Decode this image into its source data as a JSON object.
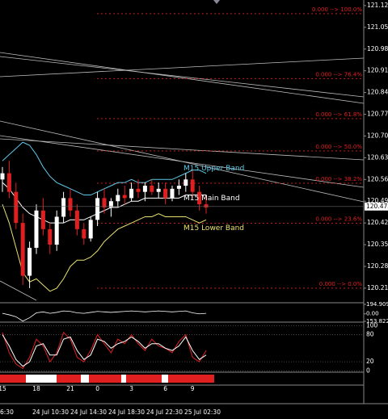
{
  "chart_data": {
    "type": "candlestick",
    "ylim": [
      120.163,
      121.138
    ],
    "yticks": [
      {
        "value": 121.12,
        "label": "121.120"
      },
      {
        "value": 121.05,
        "label": "121.050"
      },
      {
        "value": 120.98,
        "label": "120.980"
      },
      {
        "value": 120.91,
        "label": "120.910"
      },
      {
        "value": 120.84,
        "label": "120.840"
      },
      {
        "value": 120.77,
        "label": "120.770"
      },
      {
        "value": 120.7,
        "label": "120.700"
      },
      {
        "value": 120.63,
        "label": "120.630"
      },
      {
        "value": 120.56,
        "label": "120.560"
      },
      {
        "value": 120.49,
        "label": "120.490"
      },
      {
        "value": 120.42,
        "label": "120.420"
      },
      {
        "value": 120.35,
        "label": "120.350"
      },
      {
        "value": 120.28,
        "label": "120.280"
      },
      {
        "value": 120.21,
        "label": "120.210"
      }
    ],
    "last_price": {
      "value": 120.473,
      "label": "120.473"
    },
    "categories": [
      "15",
      null,
      null,
      null,
      null,
      "18",
      null,
      null,
      null,
      null,
      "21",
      null,
      null,
      null,
      "0",
      null,
      null,
      null,
      null,
      "3",
      null,
      null,
      null,
      null,
      "6",
      null,
      null,
      null,
      "9",
      null,
      null
    ],
    "date_labels": [
      "6:30",
      "24 Jul 10:30",
      "24 Jul 14:30",
      "24 Jul 18:30",
      "24 Jul 22:30",
      "25 Jul 02:30"
    ],
    "open": [
      120.56,
      120.58,
      120.52,
      120.42,
      120.25,
      120.34,
      120.46,
      120.4,
      120.35,
      120.44,
      120.5,
      120.46,
      120.4,
      120.37,
      120.43,
      120.5,
      120.47,
      120.49,
      120.51,
      120.5,
      120.53,
      120.52,
      120.54,
      120.52,
      120.53,
      120.5,
      120.53,
      120.54,
      120.56,
      120.52,
      120.48
    ],
    "high": [
      120.6,
      120.62,
      120.55,
      120.45,
      120.36,
      120.48,
      120.5,
      120.42,
      120.46,
      120.52,
      120.53,
      120.48,
      120.42,
      120.44,
      120.52,
      120.53,
      120.5,
      120.53,
      120.54,
      120.55,
      120.56,
      120.55,
      120.56,
      120.55,
      120.55,
      120.54,
      120.56,
      120.58,
      120.59,
      120.54,
      120.51
    ],
    "low": [
      120.52,
      120.5,
      120.4,
      120.22,
      120.21,
      120.32,
      120.38,
      120.32,
      120.33,
      120.42,
      120.44,
      120.38,
      120.35,
      120.36,
      120.41,
      120.45,
      120.44,
      120.47,
      120.48,
      120.49,
      120.5,
      120.49,
      120.51,
      120.5,
      120.48,
      120.49,
      120.51,
      120.52,
      120.5,
      120.46,
      120.45
    ],
    "close": [
      120.58,
      120.52,
      120.42,
      120.25,
      120.34,
      120.46,
      120.4,
      120.35,
      120.44,
      120.5,
      120.46,
      120.4,
      120.37,
      120.43,
      120.5,
      120.47,
      120.49,
      120.51,
      120.5,
      120.53,
      120.52,
      120.54,
      120.52,
      120.53,
      120.5,
      120.53,
      120.54,
      120.56,
      120.52,
      120.48,
      120.47
    ],
    "up_color": "#ffffff",
    "down_color": "#e02020",
    "bands": [
      {
        "name": "M15 Upper Band",
        "color": "#5fc8e8",
        "values": [
          120.62,
          120.64,
          120.66,
          120.68,
          120.67,
          120.64,
          120.6,
          120.57,
          120.55,
          120.54,
          120.53,
          120.52,
          120.51,
          120.51,
          120.52,
          120.53,
          120.54,
          120.55,
          120.55,
          120.56,
          120.55,
          120.55,
          120.56,
          120.56,
          120.56,
          120.56,
          120.57,
          120.58,
          120.59,
          120.59,
          120.58
        ]
      },
      {
        "name": "M15 Main Band",
        "color": "#ffffff",
        "values": [
          120.55,
          120.53,
          120.5,
          120.47,
          120.45,
          120.44,
          120.43,
          120.42,
          120.42,
          120.42,
          120.43,
          120.43,
          120.43,
          120.44,
          120.45,
          120.46,
          120.47,
          120.47,
          120.48,
          120.49,
          120.49,
          120.5,
          120.5,
          120.5,
          120.5,
          120.5,
          120.5,
          120.51,
          120.51,
          120.51,
          120.51
        ]
      },
      {
        "name": "M15 Lower Band",
        "color": "#e8e070",
        "values": [
          120.48,
          120.42,
          120.34,
          120.26,
          120.23,
          120.24,
          120.22,
          120.2,
          120.21,
          120.24,
          120.28,
          120.3,
          120.3,
          120.31,
          120.33,
          120.36,
          120.38,
          120.4,
          120.41,
          120.42,
          120.43,
          120.44,
          120.44,
          120.45,
          120.44,
          120.44,
          120.44,
          120.44,
          120.43,
          120.42,
          120.43
        ]
      }
    ],
    "fib_levels": [
      {
        "label": "0.000 --> 100.0%",
        "value": 121.094
      },
      {
        "label": "0.000 --> 76.4%",
        "value": 120.885
      },
      {
        "label": "0.000 --> 61.8%",
        "value": 120.756
      },
      {
        "label": "0.000 --> 50.0%",
        "value": 120.652
      },
      {
        "label": "0.000 --> 38.2%",
        "value": 120.548
      },
      {
        "label": "0.000 --> 23.6%",
        "value": 120.419
      },
      {
        "label": "0.000 --> 0.0%",
        "value": 120.21
      }
    ],
    "osc": {
      "ylim": [
        -153.822,
        194.9097
      ],
      "yticks": [
        {
          "value": 194.9097,
          "label": "194.9097"
        },
        {
          "value": 0,
          "label": "0.00"
        },
        {
          "value": -153.822,
          "label": "153.822"
        }
      ],
      "color": "#ffffff",
      "values": [
        10,
        -20,
        -60,
        -150,
        -80,
        20,
        40,
        10,
        30,
        60,
        50,
        20,
        10,
        30,
        50,
        40,
        30,
        40,
        50,
        60,
        50,
        40,
        50,
        60,
        50,
        40,
        50,
        60,
        20,
        0,
        10
      ]
    },
    "stoch": {
      "ylim": [
        -3,
        106
      ],
      "yticks": [
        100,
        80,
        20,
        0
      ],
      "series": [
        {
          "color": "#e02020",
          "values": [
            85,
            40,
            15,
            5,
            30,
            70,
            55,
            20,
            40,
            85,
            70,
            30,
            20,
            45,
            80,
            60,
            40,
            70,
            60,
            80,
            60,
            45,
            70,
            55,
            50,
            40,
            65,
            80,
            30,
            20,
            45
          ]
        },
        {
          "color": "#ffffff",
          "values": [
            80,
            55,
            25,
            10,
            20,
            55,
            60,
            35,
            35,
            70,
            75,
            45,
            25,
            35,
            70,
            65,
            50,
            60,
            65,
            75,
            65,
            50,
            60,
            60,
            50,
            45,
            55,
            75,
            45,
            25,
            35
          ]
        }
      ]
    }
  }
}
